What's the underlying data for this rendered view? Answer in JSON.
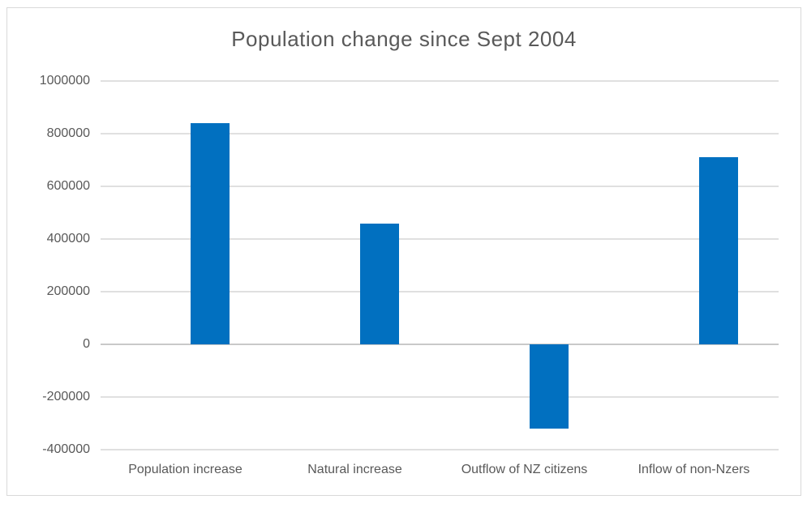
{
  "chart_data": {
    "type": "bar",
    "title": "Population change since Sept 2004",
    "categories": [
      "Population increase",
      "Natural increase",
      "Outflow of NZ citizens",
      "Inflow of non-Nzers"
    ],
    "values": [
      840000,
      460000,
      -320000,
      710000
    ],
    "xlabel": "",
    "ylabel": "",
    "ylim": [
      -400000,
      1000000
    ],
    "ytick_step": 200000,
    "ytick_labels": [
      "1000000",
      "800000",
      "600000",
      "400000",
      "200000",
      "0",
      "-200000",
      "-400000"
    ],
    "grid": true,
    "legend": false,
    "colors": {
      "bar": "#0170c0",
      "gridline": "#e0e0e0",
      "zero_axis": "#c9c9c9",
      "text": "#595959",
      "frame_border": "#d9d9d9",
      "background": "#ffffff"
    }
  }
}
